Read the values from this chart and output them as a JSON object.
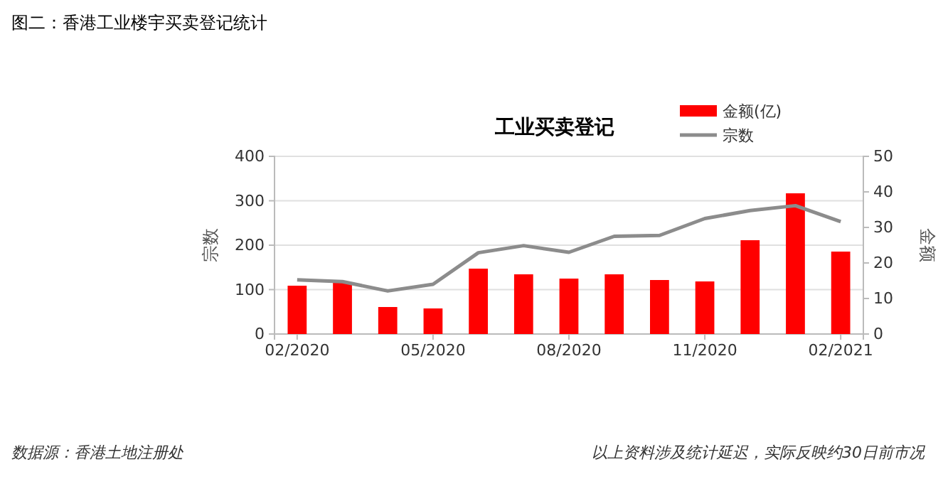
{
  "chart_data": {
    "type": "bar",
    "title": "图二：香港工业楼宇买卖登记统计",
    "subtitle": "工业买卖登记",
    "ylabel": "宗数",
    "y2label": "金额",
    "categories": [
      "02/2020",
      null,
      null,
      "05/2020",
      null,
      null,
      "08/2020",
      null,
      null,
      "11/2020",
      null,
      null,
      "02/2021"
    ],
    "series": [
      {
        "name": "金额(亿)",
        "axis": "y2",
        "color": "#ff0000",
        "values": [
          13.6,
          14.4,
          7.6,
          7.2,
          18.4,
          16.8,
          15.6,
          16.8,
          15.2,
          14.8,
          26.4,
          39.6,
          23.2
        ]
      },
      {
        "name": "宗数",
        "type": "line",
        "color": "#8c8c8c",
        "values": [
          122,
          118,
          97,
          112,
          183,
          199,
          184,
          220,
          222,
          260,
          278,
          289,
          253
        ]
      }
    ],
    "ylim": [
      0,
      400
    ],
    "yticks": [
      0,
      100,
      200,
      300,
      400
    ],
    "y2lim": [
      0,
      50
    ],
    "y2ticks": [
      0,
      10,
      20,
      30,
      40,
      50
    ],
    "grid": "y",
    "legend": "top right",
    "marker": "none",
    "line_style": "solid",
    "annotations": [
      "数据源：香港土地注册处",
      "以上资料涉及统计延迟，实际反映约30日前市况"
    ]
  }
}
